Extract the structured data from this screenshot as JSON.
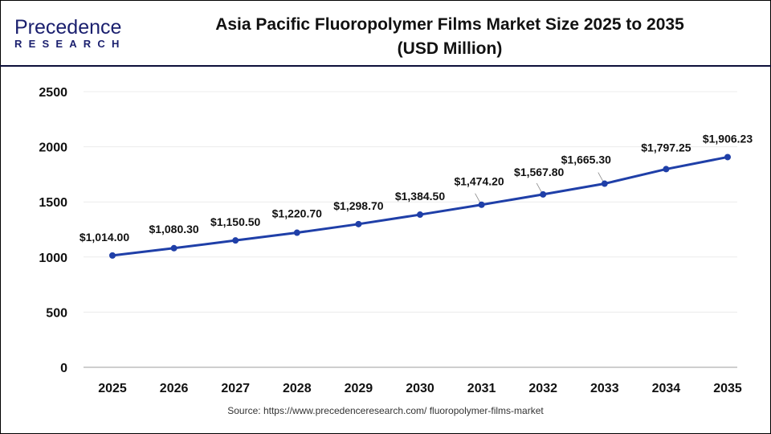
{
  "header": {
    "logo": {
      "line1": "Precedence",
      "line2": "RESEARCH"
    },
    "title_line1": "Asia Pacific Fluoropolymer Films Market Size 2025 to 2035",
    "title_line2": "(USD Million)"
  },
  "chart_data": {
    "type": "line",
    "title": "Asia Pacific Fluoropolymer Films Market Size 2025 to 2035 (USD Million)",
    "xlabel": "",
    "ylabel": "",
    "categories": [
      "2025",
      "2026",
      "2027",
      "2028",
      "2029",
      "2030",
      "2031",
      "2032",
      "2033",
      "2034",
      "2035"
    ],
    "series": [
      {
        "name": "Market Size (USD Million)",
        "color": "#1f3fa8",
        "values": [
          1014.0,
          1080.3,
          1150.5,
          1220.7,
          1298.7,
          1384.5,
          1474.2,
          1567.8,
          1665.3,
          1797.25,
          1906.23
        ],
        "labels": [
          "$1,014.00",
          "$1,080.30",
          "$1,150.50",
          "$1,220.70",
          "$1,298.70",
          "$1,384.50",
          "$1,474.20",
          "$1,567.80",
          "$1,665.30",
          "$1,797.25",
          "$1,906.23"
        ]
      }
    ],
    "yticks": [
      0,
      500,
      1000,
      1500,
      2000,
      2500
    ],
    "ylim": [
      0,
      2500
    ],
    "grid": true,
    "legend": "none"
  },
  "footer": {
    "source": "Source: https://www.precedenceresearch.com/ fluoropolymer-films-market"
  }
}
